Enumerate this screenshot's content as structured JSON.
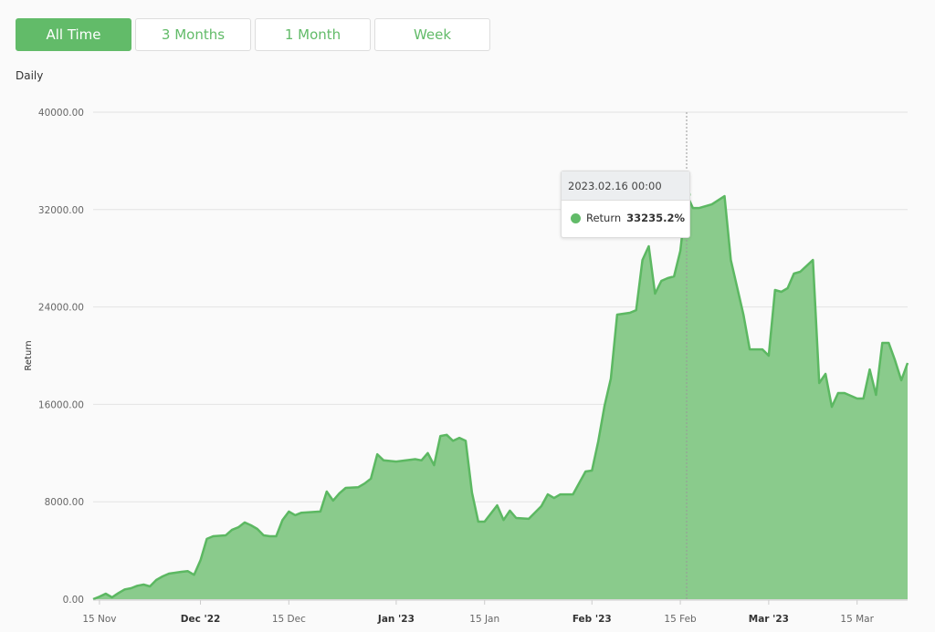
{
  "range_tabs": [
    {
      "label": "All Time",
      "active": true
    },
    {
      "label": "3 Months",
      "active": false
    },
    {
      "label": "1 Month",
      "active": false
    },
    {
      "label": "Week",
      "active": false
    }
  ],
  "period_label": "Daily",
  "tooltip": {
    "date": "2023.02.16 00:00",
    "series": "Return",
    "value": "33235.2%",
    "x": "2023-02-16",
    "y": 33235.2
  },
  "colors": {
    "accent": "#62bb69",
    "fill": "#8acb8c",
    "line": "#5cb862"
  },
  "chart_data": {
    "type": "area",
    "title": "",
    "xlabel": "",
    "ylabel": "Return",
    "ylim": [
      0,
      40000
    ],
    "xlim": [
      "2022-11-14",
      "2023-03-23"
    ],
    "grid": true,
    "yticks": [
      {
        "v": 0,
        "label": "0.00"
      },
      {
        "v": 8000,
        "label": "8000.00"
      },
      {
        "v": 16000,
        "label": "16000.00"
      },
      {
        "v": 24000,
        "label": "24000.00"
      },
      {
        "v": 32000,
        "label": "32000.00"
      },
      {
        "v": 40000,
        "label": "40000.00"
      }
    ],
    "xticks": [
      {
        "d": "2022-11-15",
        "label": "15 Nov",
        "bold": false
      },
      {
        "d": "2022-12-01",
        "label": "Dec '22",
        "bold": true
      },
      {
        "d": "2022-12-15",
        "label": "15 Dec",
        "bold": false
      },
      {
        "d": "2023-01-01",
        "label": "Jan '23",
        "bold": true
      },
      {
        "d": "2023-01-15",
        "label": "15 Jan",
        "bold": false
      },
      {
        "d": "2023-02-01",
        "label": "Feb '23",
        "bold": true
      },
      {
        "d": "2023-02-15",
        "label": "15 Feb",
        "bold": false
      },
      {
        "d": "2023-03-01",
        "label": "Mar '23",
        "bold": true
      },
      {
        "d": "2023-03-15",
        "label": "15 Mar",
        "bold": false
      }
    ],
    "series": [
      {
        "name": "Return",
        "points": [
          [
            "2022-11-14",
            0
          ],
          [
            "2022-11-15",
            200
          ],
          [
            "2022-11-16",
            450
          ],
          [
            "2022-11-17",
            150
          ],
          [
            "2022-11-18",
            500
          ],
          [
            "2022-11-19",
            800
          ],
          [
            "2022-11-20",
            900
          ],
          [
            "2022-11-21",
            1100
          ],
          [
            "2022-11-22",
            1200
          ],
          [
            "2022-11-23",
            1050
          ],
          [
            "2022-11-24",
            1570
          ],
          [
            "2022-11-25",
            1870
          ],
          [
            "2022-11-26",
            2100
          ],
          [
            "2022-11-28",
            2250
          ],
          [
            "2022-11-29",
            2300
          ],
          [
            "2022-11-30",
            2000
          ],
          [
            "2022-12-01",
            3200
          ],
          [
            "2022-12-02",
            4950
          ],
          [
            "2022-12-03",
            5170
          ],
          [
            "2022-12-05",
            5240
          ],
          [
            "2022-12-06",
            5700
          ],
          [
            "2022-12-07",
            5900
          ],
          [
            "2022-12-08",
            6300
          ],
          [
            "2022-12-09",
            6070
          ],
          [
            "2022-12-10",
            5770
          ],
          [
            "2022-12-11",
            5240
          ],
          [
            "2022-12-12",
            5170
          ],
          [
            "2022-12-13",
            5170
          ],
          [
            "2022-12-14",
            6500
          ],
          [
            "2022-12-15",
            7200
          ],
          [
            "2022-12-16",
            6900
          ],
          [
            "2022-12-17",
            7100
          ],
          [
            "2022-12-20",
            7200
          ],
          [
            "2022-12-21",
            8840
          ],
          [
            "2022-12-22",
            8100
          ],
          [
            "2022-12-23",
            8700
          ],
          [
            "2022-12-24",
            9140
          ],
          [
            "2022-12-26",
            9200
          ],
          [
            "2022-12-27",
            9500
          ],
          [
            "2022-12-28",
            9900
          ],
          [
            "2022-12-29",
            11900
          ],
          [
            "2022-12-30",
            11400
          ],
          [
            "2023-01-01",
            11300
          ],
          [
            "2023-01-04",
            11500
          ],
          [
            "2023-01-05",
            11400
          ],
          [
            "2023-01-06",
            12000
          ],
          [
            "2023-01-07",
            11000
          ],
          [
            "2023-01-08",
            13400
          ],
          [
            "2023-01-09",
            13500
          ],
          [
            "2023-01-10",
            13000
          ],
          [
            "2023-01-11",
            13250
          ],
          [
            "2023-01-12",
            13000
          ],
          [
            "2023-01-13",
            8760
          ],
          [
            "2023-01-14",
            6370
          ],
          [
            "2023-01-15",
            6370
          ],
          [
            "2023-01-17",
            7710
          ],
          [
            "2023-01-18",
            6500
          ],
          [
            "2023-01-19",
            7270
          ],
          [
            "2023-01-20",
            6670
          ],
          [
            "2023-01-22",
            6600
          ],
          [
            "2023-01-24",
            7640
          ],
          [
            "2023-01-25",
            8610
          ],
          [
            "2023-01-26",
            8310
          ],
          [
            "2023-01-27",
            8610
          ],
          [
            "2023-01-29",
            8610
          ],
          [
            "2023-01-31",
            10490
          ],
          [
            "2023-02-01",
            10560
          ],
          [
            "2023-02-02",
            12960
          ],
          [
            "2023-02-03",
            15880
          ],
          [
            "2023-02-04",
            18130
          ],
          [
            "2023-02-05",
            23370
          ],
          [
            "2023-02-07",
            23520
          ],
          [
            "2023-02-08",
            23740
          ],
          [
            "2023-02-09",
            27860
          ],
          [
            "2023-02-10",
            28990
          ],
          [
            "2023-02-11",
            25090
          ],
          [
            "2023-02-12",
            26140
          ],
          [
            "2023-02-13",
            26370
          ],
          [
            "2023-02-14",
            26510
          ],
          [
            "2023-02-15",
            28610
          ],
          [
            "2023-02-16",
            33235.2
          ],
          [
            "2023-02-17",
            32130
          ],
          [
            "2023-02-18",
            32130
          ],
          [
            "2023-02-20",
            32430
          ],
          [
            "2023-02-22",
            33100
          ],
          [
            "2023-02-23",
            27860
          ],
          [
            "2023-02-24",
            25620
          ],
          [
            "2023-02-25",
            23370
          ],
          [
            "2023-02-26",
            20520
          ],
          [
            "2023-02-28",
            20520
          ],
          [
            "2023-03-01",
            20000
          ],
          [
            "2023-03-02",
            25390
          ],
          [
            "2023-03-03",
            25240
          ],
          [
            "2023-03-04",
            25540
          ],
          [
            "2023-03-05",
            26740
          ],
          [
            "2023-03-06",
            26890
          ],
          [
            "2023-03-08",
            27860
          ],
          [
            "2023-03-09",
            17750
          ],
          [
            "2023-03-10",
            18500
          ],
          [
            "2023-03-11",
            15800
          ],
          [
            "2023-03-12",
            16930
          ],
          [
            "2023-03-13",
            16930
          ],
          [
            "2023-03-15",
            16480
          ],
          [
            "2023-03-16",
            16480
          ],
          [
            "2023-03-17",
            18870
          ],
          [
            "2023-03-18",
            16780
          ],
          [
            "2023-03-19",
            21050
          ],
          [
            "2023-03-20",
            21050
          ],
          [
            "2023-03-21",
            19620
          ],
          [
            "2023-03-22",
            17980
          ],
          [
            "2023-03-23",
            19400
          ]
        ]
      }
    ]
  }
}
